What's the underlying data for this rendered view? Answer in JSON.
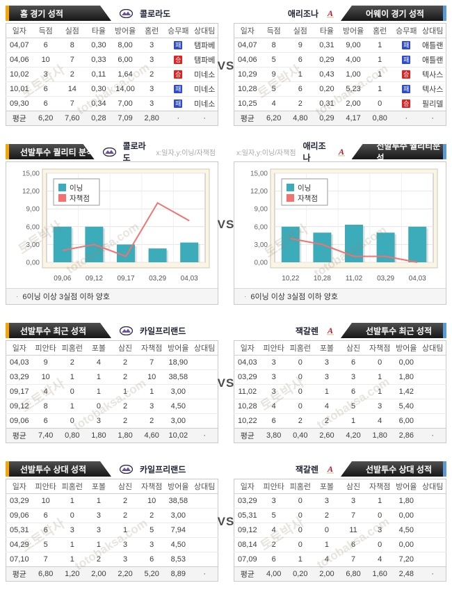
{
  "vs_label": "VS",
  "watermark": {
    "korean": "토토박사",
    "latin": "totobaksa.com"
  },
  "colors": {
    "accent_orange": "#f5a506",
    "accent_blue": "#5b9bd5",
    "badge_win": "#e3201f",
    "badge_lose": "#2e4bd0",
    "bar_teal": "#3cacba",
    "line_red": "#f4716f",
    "chart_bg": "#fbf5e6"
  },
  "legend": {
    "innings": "이닝",
    "earned_runs": "자책점"
  },
  "sections": [
    {
      "left": {
        "title": "홈 경기 성적",
        "team": "콜로라도",
        "logo": "colorado-logo",
        "columns": [
          "일자",
          "득점",
          "실점",
          "타율",
          "방어율",
          "홈런",
          "승무패",
          "상대팀"
        ],
        "rows": [
          [
            "04,07",
            "6",
            "8",
            "0,30",
            "8,00",
            "3",
            {
              "t": "패",
              "badge": "lose"
            },
            "탬파베"
          ],
          [
            "04,06",
            "10",
            "7",
            "0,33",
            "6,00",
            "3",
            {
              "t": "승",
              "badge": "win"
            },
            "탬파베"
          ],
          [
            "10,02",
            "3",
            "2",
            "0,11",
            "1,64",
            "2",
            {
              "t": "승",
              "badge": "win"
            },
            "미네소"
          ],
          [
            "10,01",
            "6",
            "14",
            "0,30",
            "14,00",
            "3",
            {
              "t": "패",
              "badge": "lose"
            },
            "미네소"
          ],
          [
            "09,30",
            "6",
            "7",
            "0,34",
            "7,00",
            "3",
            {
              "t": "패",
              "badge": "lose"
            },
            "미네소"
          ]
        ],
        "avg": [
          "평균",
          "6,20",
          "7,60",
          "0,28",
          "7,09",
          "2,80",
          "·",
          "·"
        ]
      },
      "right": {
        "title": "어웨이 경기 성적",
        "team": "애리조나",
        "logo": "arizona-logo",
        "columns": [
          "일자",
          "득점",
          "실점",
          "타율",
          "방어율",
          "홈런",
          "승무패",
          "상대팀"
        ],
        "rows": [
          [
            "04,07",
            "8",
            "9",
            "0,31",
            "9,00",
            "1",
            {
              "t": "패",
              "badge": "lose"
            },
            "애틀랜"
          ],
          [
            "04,06",
            "5",
            "6",
            "0,29",
            "4,00",
            "1",
            {
              "t": "패",
              "badge": "lose"
            },
            "애틀랜"
          ],
          [
            "10,29",
            "9",
            "1",
            "0,43",
            "1,00",
            "1",
            {
              "t": "승",
              "badge": "win"
            },
            "텍사스"
          ],
          [
            "10,28",
            "5",
            "6",
            "0,20",
            "5,23",
            "1",
            {
              "t": "패",
              "badge": "lose"
            },
            "텍사스"
          ],
          [
            "10,25",
            "4",
            "2",
            "0,31",
            "2,00",
            "0",
            {
              "t": "승",
              "badge": "win"
            },
            "필리델"
          ]
        ],
        "avg": [
          "평균",
          "6,20",
          "4,80",
          "0,29",
          "4,17",
          "0,80",
          "·",
          "·"
        ]
      }
    },
    {
      "left": {
        "title": "선발투수 퀄리티 분석",
        "team": "콜로라도",
        "hint": "x:일자,y:이닝/자책점",
        "note": "6이닝 이상 3실점 이하 양호"
      },
      "right": {
        "title": "선발투수 퀄리티분석",
        "team": "애리조나",
        "hint": "x:일자,y:이닝/자책점",
        "note": "6이닝 이상 3실점 이하 양호"
      }
    },
    {
      "left": {
        "title": "선발투수 최근 성적",
        "team": "카일프리랜드",
        "logo": "colorado-logo",
        "columns": [
          "일자",
          "피안타",
          "피홈런",
          "포볼",
          "삼진",
          "자책점",
          "방어율",
          "상대팀"
        ],
        "rows": [
          [
            "04,03",
            "9",
            "2",
            "4",
            "2",
            "7",
            "18,90",
            ""
          ],
          [
            "03,29",
            "10",
            "1",
            "1",
            "2",
            "10",
            "38,58",
            ""
          ],
          [
            "09,17",
            "4",
            "0",
            "1",
            "1",
            "1",
            "3,00",
            ""
          ],
          [
            "09,12",
            "8",
            "1",
            "0",
            "2",
            "3",
            "4,50",
            ""
          ],
          [
            "09,06",
            "6",
            "0",
            "3",
            "2",
            "2",
            "3,00",
            ""
          ]
        ],
        "avg": [
          "평균",
          "7,40",
          "0,80",
          "1,80",
          "1,80",
          "4,60",
          "10,02",
          "·"
        ]
      },
      "right": {
        "title": "선발투수 최근 성적",
        "team": "잭갈렌",
        "logo": "arizona-logo",
        "columns": [
          "일자",
          "피안타",
          "피홈런",
          "포볼",
          "삼진",
          "자책점",
          "방어율",
          "상대팀"
        ],
        "rows": [
          [
            "04,03",
            "3",
            "0",
            "3",
            "6",
            "0",
            "0,00",
            ""
          ],
          [
            "03,29",
            "3",
            "0",
            "3",
            "3",
            "1",
            "1,80",
            ""
          ],
          [
            "11,02",
            "3",
            "0",
            "1",
            "6",
            "1",
            "1,42",
            ""
          ],
          [
            "10,28",
            "4",
            "0",
            "4",
            "5",
            "3",
            "5,40",
            ""
          ],
          [
            "10,22",
            "6",
            "2",
            "2",
            "1",
            "4",
            "6,00",
            ""
          ]
        ],
        "avg": [
          "평균",
          "3,80",
          "0,40",
          "2,60",
          "4,20",
          "1,80",
          "2,86",
          "·"
        ]
      }
    },
    {
      "left": {
        "title": "선발투수 상대 성적",
        "team": "카일프리랜드",
        "logo": "colorado-logo",
        "columns": [
          "일자",
          "피안타",
          "피홈런",
          "포볼",
          "삼진",
          "자책점",
          "방어율",
          "상대팀"
        ],
        "rows": [
          [
            "03,29",
            "10",
            "1",
            "1",
            "2",
            "10",
            "38,58",
            ""
          ],
          [
            "09,06",
            "6",
            "0",
            "3",
            "2",
            "2",
            "3,00",
            ""
          ],
          [
            "05,31",
            "6",
            "3",
            "3",
            "1",
            "5",
            "7,94",
            ""
          ],
          [
            "04,29",
            "5",
            "1",
            "1",
            "3",
            "3",
            "4,50",
            ""
          ],
          [
            "07,10",
            "7",
            "1",
            "2",
            "3",
            "6",
            "8,53",
            ""
          ]
        ],
        "avg": [
          "평균",
          "6,80",
          "1,20",
          "2,00",
          "2,20",
          "5,20",
          "8,89",
          "·"
        ]
      },
      "right": {
        "title": "선발투수 상대 성적",
        "team": "잭갈렌",
        "logo": "arizona-logo",
        "columns": [
          "일자",
          "피안타",
          "피홈런",
          "포볼",
          "삼진",
          "자책점",
          "방어율",
          "상대팀"
        ],
        "rows": [
          [
            "03,29",
            "3",
            "0",
            "3",
            "3",
            "1",
            "1,80",
            ""
          ],
          [
            "05,31",
            "5",
            "0",
            "2",
            "7",
            "0",
            "0,00",
            ""
          ],
          [
            "09,12",
            "4",
            "0",
            "0",
            "11",
            "3",
            "4,50",
            ""
          ],
          [
            "08,14",
            "2",
            "0",
            "1",
            "6",
            "0",
            "0,00",
            ""
          ],
          [
            "07,09",
            "6",
            "1",
            "4",
            "7",
            "4",
            "7,20",
            ""
          ]
        ],
        "avg": [
          "평균",
          "4,00",
          "0,20",
          "2,00",
          "6,80",
          "1,60",
          "2,48",
          "·"
        ]
      }
    }
  ],
  "chart_data": [
    {
      "type": "bar",
      "title": "선발투수 퀄리티 분석 - 콜로라도",
      "categories": [
        "09,06",
        "09,12",
        "09,17",
        "03,29",
        "04,03"
      ],
      "series": [
        {
          "name": "이닝",
          "type": "bar",
          "values": [
            6.0,
            6.0,
            3.0,
            2.33,
            3.33
          ],
          "color": "#3cacba"
        },
        {
          "name": "자책점",
          "type": "line",
          "values": [
            2,
            3,
            1,
            10,
            7
          ],
          "color": "#f4716f"
        }
      ],
      "xlabel": "일자",
      "ylabel": "이닝/자책점",
      "ylim": [
        0,
        15
      ],
      "yticks": [
        "0,00",
        "3,00",
        "6,00",
        "9,00",
        "12,00",
        "15,00"
      ],
      "grid": true,
      "legend_position": "top-left",
      "note": "6이닝 이상 3실점 이하 양호"
    },
    {
      "type": "bar",
      "title": "선발투수 퀄리티분석 - 애리조나",
      "categories": [
        "10,22",
        "10,28",
        "11,02",
        "03,29",
        "04,03"
      ],
      "series": [
        {
          "name": "이닝",
          "type": "bar",
          "values": [
            6.0,
            5.0,
            6.33,
            5.0,
            6.0
          ],
          "color": "#3cacba"
        },
        {
          "name": "자책점",
          "type": "line",
          "values": [
            4,
            3,
            1,
            1,
            0
          ],
          "color": "#f4716f"
        }
      ],
      "xlabel": "일자",
      "ylabel": "이닝/자책점",
      "ylim": [
        0,
        15
      ],
      "yticks": [
        "0,00",
        "3,00",
        "6,00",
        "9,00",
        "12,00",
        "15,00"
      ],
      "grid": true,
      "legend_position": "top-left",
      "note": "6이닝 이상 3실점 이하 양호"
    }
  ]
}
